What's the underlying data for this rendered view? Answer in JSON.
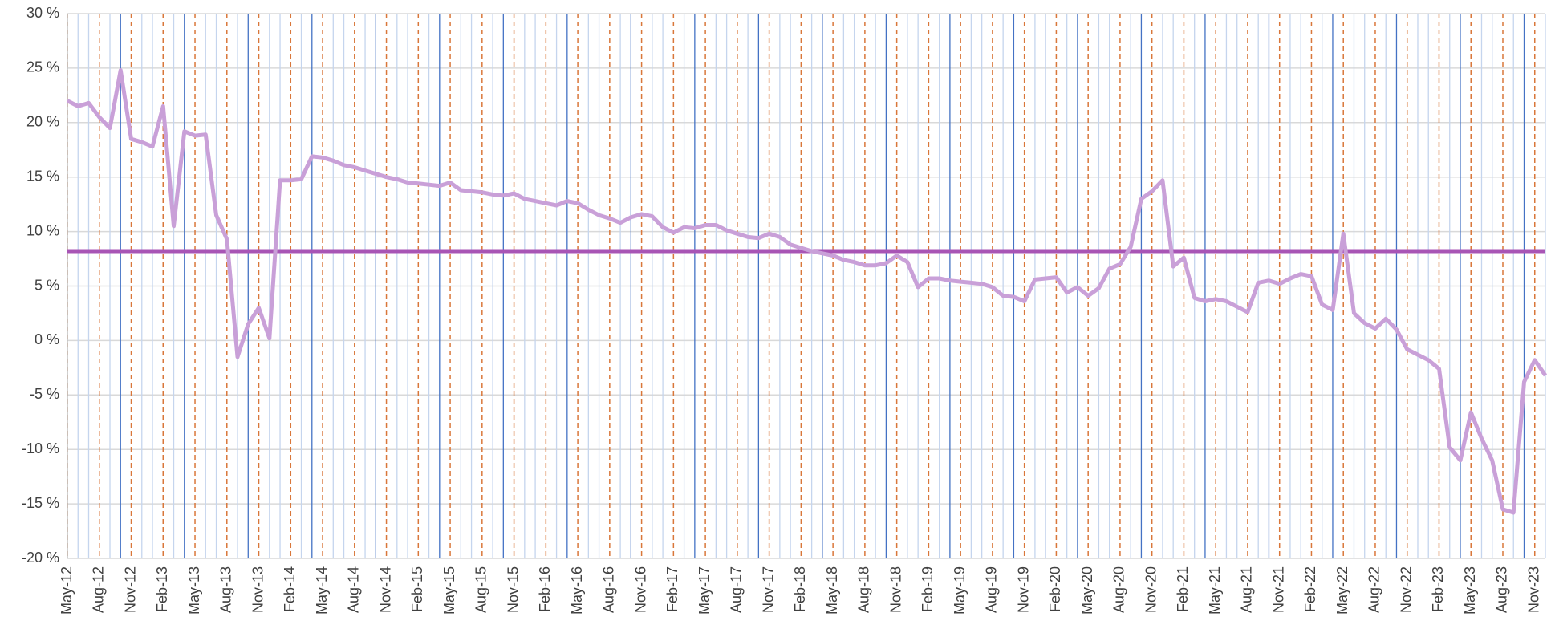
{
  "chart_data": {
    "type": "line",
    "categories": [
      "May-12",
      null,
      null,
      "Aug-12",
      null,
      null,
      "Nov-12",
      null,
      null,
      "Feb-13",
      null,
      null,
      "May-13",
      null,
      null,
      "Aug-13",
      null,
      null,
      "Nov-13",
      null,
      null,
      "Feb-14",
      null,
      null,
      "May-14",
      null,
      null,
      "Aug-14",
      null,
      null,
      "Nov-14",
      null,
      null,
      "Feb-15",
      null,
      null,
      "May-15",
      null,
      null,
      "Aug-15",
      null,
      null,
      "Nov-15",
      null,
      null,
      "Feb-16",
      null,
      null,
      "May-16",
      null,
      null,
      "Aug-16",
      null,
      null,
      "Nov-16",
      null,
      null,
      "Feb-17",
      null,
      null,
      "May-17",
      null,
      null,
      "Aug-17",
      null,
      null,
      "Nov-17",
      null,
      null,
      "Feb-18",
      null,
      null,
      "May-18",
      null,
      null,
      "Aug-18",
      null,
      null,
      "Nov-18",
      null,
      null,
      "Feb-19",
      null,
      null,
      "May-19",
      null,
      null,
      "Aug-19",
      null,
      null,
      "Nov-19",
      null,
      null,
      "Feb-20",
      null,
      null,
      "May-20",
      null,
      null,
      "Aug-20",
      null,
      null,
      "Nov-20",
      null,
      null,
      "Feb-21",
      null,
      null,
      "May-21",
      null,
      null,
      "Aug-21",
      null,
      null,
      "Nov-21",
      null,
      null,
      "Feb-22",
      null,
      null,
      "May-22",
      null,
      null,
      "Aug-22",
      null,
      null,
      "Nov-22",
      null,
      null,
      "Feb-23",
      null,
      null,
      "May-23",
      null,
      null,
      "Aug-23",
      null,
      null,
      "Nov-23",
      null
    ],
    "series": [
      {
        "color": "#c9a0d8",
        "values": [
          22,
          21.5,
          21.8,
          20.5,
          19.5,
          24.8,
          18.5,
          18.2,
          17.8,
          21.5,
          10.5,
          19.2,
          18.8,
          18.9,
          11.5,
          9.3,
          -1.5,
          1.5,
          3,
          0.2,
          14.7,
          14.7,
          14.8,
          16.9,
          16.8,
          16.5,
          16.1,
          15.9,
          15.6,
          15.3,
          15.0,
          14.8,
          14.5,
          14.4,
          14.3,
          14.2,
          14.5,
          13.8,
          13.7,
          13.6,
          13.4,
          13.3,
          13.5,
          13.0,
          12.8,
          12.6,
          12.4,
          12.8,
          12.6,
          12.0,
          11.5,
          11.2,
          10.8,
          11.3,
          11.6,
          11.4,
          10.4,
          9.9,
          10.4,
          10.3,
          10.6,
          10.6,
          10.1,
          9.8,
          9.5,
          9.4,
          9.8,
          9.5,
          8.8,
          8.5,
          8.2,
          8.0,
          7.8,
          7.4,
          7.2,
          6.9,
          6.9,
          7.1,
          7.8,
          7.2,
          4.9,
          5.7,
          5.7,
          5.5,
          5.4,
          5.3,
          5.2,
          4.9,
          4.1,
          4.0,
          3.6,
          5.6,
          5.7,
          5.8,
          4.4,
          4.9,
          4.1,
          4.8,
          6.6,
          7.0,
          8.6,
          13.0,
          13.7,
          14.7,
          6.8,
          7.6,
          3.9,
          3.6,
          3.8,
          3.6,
          3.1,
          2.6,
          5.3,
          5.5,
          5.2,
          5.7,
          6.1,
          5.9,
          3.3,
          2.8,
          9.8,
          2.5,
          1.6,
          1.1,
          2.0,
          1.0,
          -0.8,
          -1.3,
          -1.8,
          -2.6,
          -9.8,
          -11.0,
          -6.6,
          -9.0,
          -11.0,
          -15.5,
          -15.8,
          -3.8,
          -1.8,
          -3.2
        ]
      }
    ],
    "reference_line": {
      "value": 8.2,
      "color": "#a855b5"
    },
    "ylim": [
      -20,
      30
    ],
    "yticks": [
      {
        "value": -20,
        "label": "-20 %"
      },
      {
        "value": -15,
        "label": "-15 %"
      },
      {
        "value": -10,
        "label": "-10 %"
      },
      {
        "value": -5,
        "label": "-5 %"
      },
      {
        "value": 0,
        "label": "0 %"
      },
      {
        "value": 5,
        "label": "5 %"
      },
      {
        "value": 10,
        "label": "10 %"
      },
      {
        "value": 15,
        "label": "15 %"
      },
      {
        "value": 20,
        "label": "20 %"
      },
      {
        "value": 25,
        "label": "25 %"
      },
      {
        "value": 30,
        "label": "30 %"
      }
    ],
    "grid": true
  }
}
